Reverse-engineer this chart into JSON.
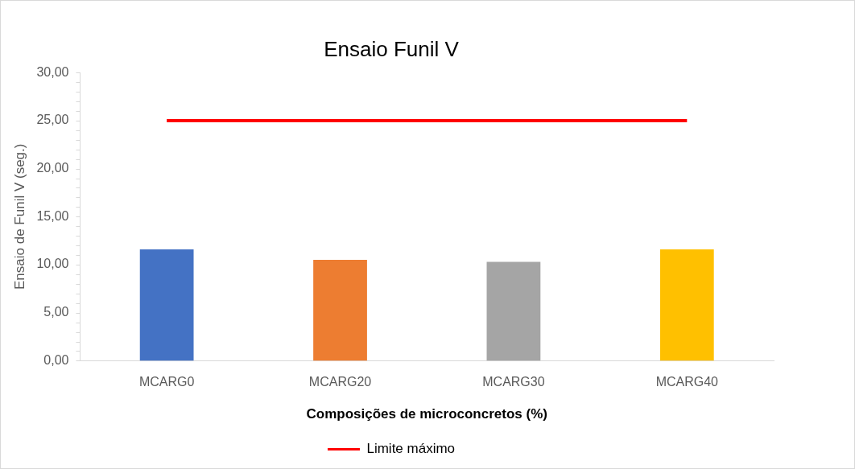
{
  "chart_data": {
    "type": "bar",
    "title": "Ensaio Funil V",
    "xlabel": "Composições de microconcretos (%)",
    "ylabel": "Ensaio de Funil V (seg.)",
    "categories": [
      "MCARG0",
      "MCARG20",
      "MCARG30",
      "MCARG40"
    ],
    "series": [
      {
        "colors": [
          "#4472c4",
          "#ed7d31",
          "#a5a5a5",
          "#ffc000"
        ],
        "values": [
          11.6,
          10.5,
          10.3,
          11.6
        ]
      },
      {
        "type": "line",
        "name": "Limite máximo",
        "color": "#ff0000",
        "values": [
          25,
          25,
          25,
          25
        ]
      }
    ],
    "ylim": [
      0,
      30
    ],
    "yticks": [
      {
        "value": 0,
        "label": "0,00"
      },
      {
        "value": 5,
        "label": "5,00"
      },
      {
        "value": 10,
        "label": "10,00"
      },
      {
        "value": 15,
        "label": "15,00"
      },
      {
        "value": 20,
        "label": "20,00"
      },
      {
        "value": 25,
        "label": "25,00"
      },
      {
        "value": 30,
        "label": "30,00"
      }
    ],
    "grid": false,
    "legend": "bottom",
    "marker": "none"
  }
}
